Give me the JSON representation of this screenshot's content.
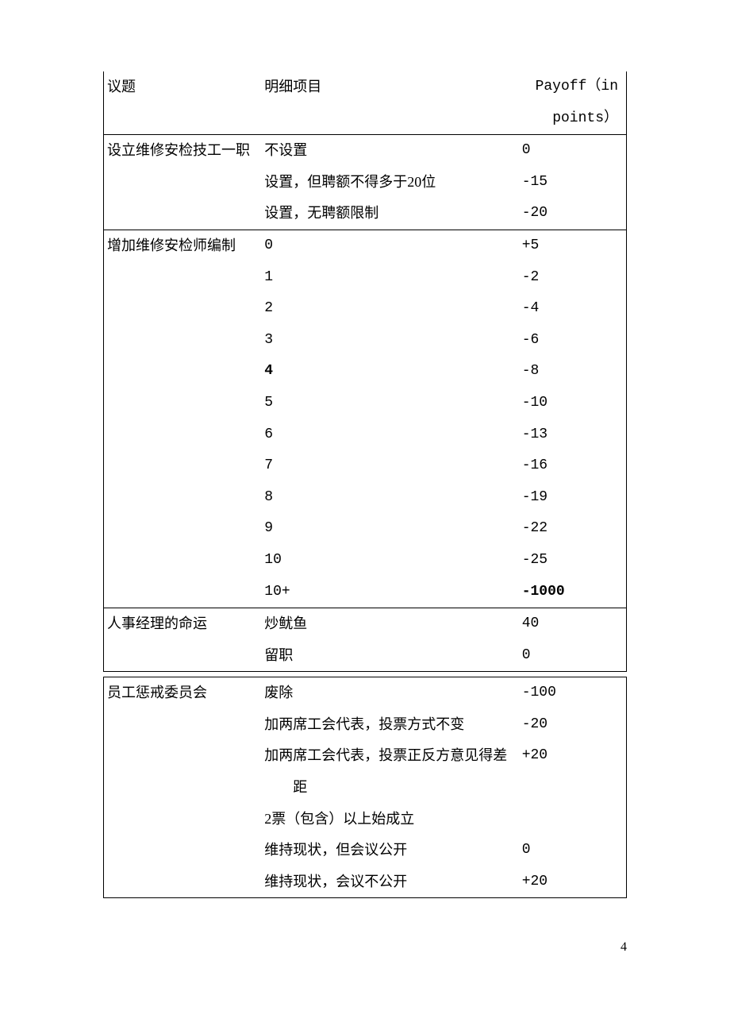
{
  "headers": {
    "col1": "议题",
    "col2": "明细项目",
    "col3_line1": "Payoff（in",
    "col3_line2": "points）"
  },
  "section1": {
    "topic": "设立维修安检技工一职",
    "rows": [
      {
        "detail": "不设置",
        "payoff": "0"
      },
      {
        "detail": "设置，但聘额不得多于20位",
        "payoff": "-15"
      },
      {
        "detail": "设置，无聘额限制",
        "payoff": "-20"
      }
    ]
  },
  "section2": {
    "topic": "增加维修安检师编制",
    "rows": [
      {
        "detail": "0",
        "payoff": "+5"
      },
      {
        "detail": "1",
        "payoff": "-2"
      },
      {
        "detail": "2",
        "payoff": "-4"
      },
      {
        "detail": "3",
        "payoff": "-6"
      },
      {
        "detail": "4",
        "payoff": "-8",
        "detail_bold": true
      },
      {
        "detail": "5",
        "payoff": "-10"
      },
      {
        "detail": "6",
        "payoff": "-13"
      },
      {
        "detail": "7",
        "payoff": "-16"
      },
      {
        "detail": "8",
        "payoff": "-19"
      },
      {
        "detail": "9",
        "payoff": "-22"
      },
      {
        "detail": "10",
        "payoff": "-25"
      },
      {
        "detail": "10+",
        "payoff": "-1000",
        "payoff_bold": true
      }
    ]
  },
  "section3": {
    "topic": "人事经理的命运",
    "rows": [
      {
        "detail": "炒鱿鱼",
        "payoff": "40"
      },
      {
        "detail": "留职",
        "payoff": "0"
      }
    ]
  },
  "section4": {
    "topic": "员工惩戒委员会",
    "rows": [
      {
        "detail": "废除",
        "payoff": "-100"
      },
      {
        "detail": "加两席工会代表，投票方式不变",
        "payoff": "-20"
      },
      {
        "detail": "加两席工会代表，投票正反方意见得差",
        "payoff": "+20"
      },
      {
        "detail_indent": "距",
        "payoff": ""
      },
      {
        "detail": "2票（包含）以上始成立",
        "payoff": ""
      },
      {
        "detail": "维持现状，但会议公开",
        "payoff": "0"
      },
      {
        "detail": "维持现状，会议不公开",
        "payoff": "+20"
      }
    ]
  },
  "page_number": "4"
}
